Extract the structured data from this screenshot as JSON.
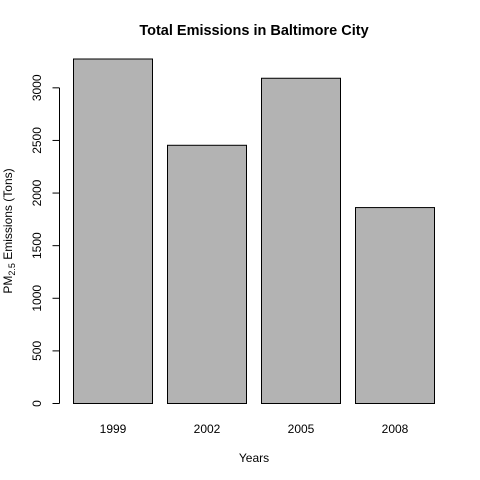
{
  "chart_data": {
    "type": "bar",
    "title": "Total Emissions in Baltimore City",
    "xlabel": "Years",
    "ylabel": {
      "prefix": "PM",
      "subscript": "2.5",
      "suffix": " Emissions (Tons)"
    },
    "categories": [
      "1999",
      "2002",
      "2005",
      "2008"
    ],
    "values": [
      3274,
      2454,
      3091,
      1862
    ],
    "ylim": [
      0,
      3274
    ],
    "yticks": [
      0,
      500,
      1000,
      1500,
      2000,
      2500,
      3000
    ],
    "grid": false,
    "bar_color": "#b3b3b3",
    "bar_border": "#000000"
  }
}
